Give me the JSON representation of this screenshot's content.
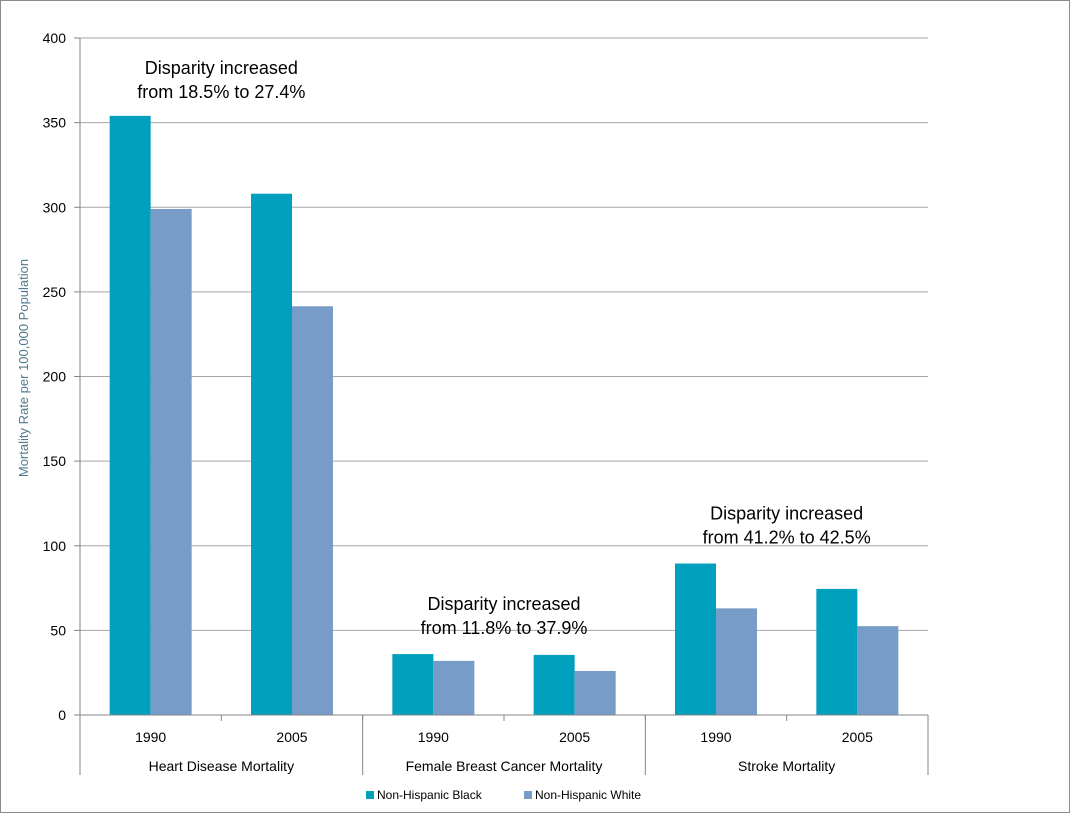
{
  "chart_data": {
    "type": "bar",
    "title": "",
    "ylabel": "Mortality Rate per 100,000 Population",
    "xlabel": "",
    "ylim": [
      0,
      400
    ],
    "yticks": [
      0,
      50,
      100,
      150,
      200,
      250,
      300,
      350,
      400
    ],
    "grid": true,
    "legend_position": "bottom",
    "groups": [
      {
        "label": "Heart Disease Mortality",
        "categories": [
          "1990",
          "2005"
        ]
      },
      {
        "label": "Female Breast Cancer Mortality",
        "categories": [
          "1990",
          "2005"
        ]
      },
      {
        "label": "Stroke Mortality",
        "categories": [
          "1990",
          "2005"
        ]
      }
    ],
    "categories": [
      "1990",
      "2005",
      "1990",
      "2005",
      "1990",
      "2005"
    ],
    "series": [
      {
        "name": "Non-Hispanic Black",
        "color": "#00A0BE",
        "values": [
          354,
          308,
          36,
          35.5,
          89.5,
          74.5
        ]
      },
      {
        "name": "Non-Hispanic White",
        "color": "#779CC8",
        "values": [
          299,
          241.5,
          32,
          26,
          63,
          52.5
        ]
      }
    ],
    "annotations": [
      {
        "line1": "Disparity increased",
        "line2": "from 18.5% to 27.4%",
        "group": 0
      },
      {
        "line1": "Disparity increased",
        "line2": "from 11.8% to 37.9%",
        "group": 1
      },
      {
        "line1": "Disparity increased",
        "line2": "from 41.2% to 42.5%",
        "group": 2
      }
    ]
  }
}
